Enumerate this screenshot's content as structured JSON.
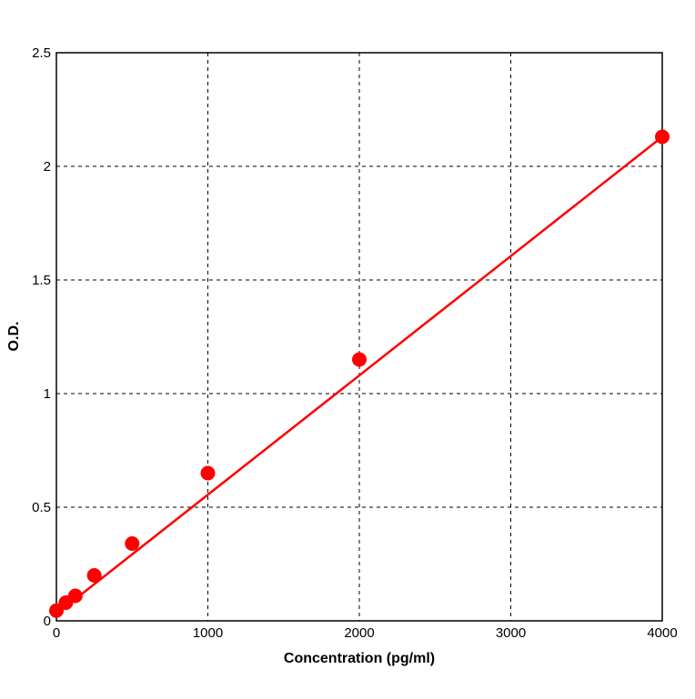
{
  "chart_data": {
    "type": "scatter",
    "title": "",
    "xlabel": "Concentration (pg/ml)",
    "ylabel": "O.D.",
    "xlim": [
      0,
      4000
    ],
    "ylim": [
      0,
      2.5
    ],
    "xticks": [
      "0",
      "1000",
      "2000",
      "3000",
      "4000"
    ],
    "yticks": [
      "0",
      "0.5",
      "1",
      "1.5",
      "2",
      "2.5"
    ],
    "grid": true,
    "series": [
      {
        "x": [
          0,
          62.5,
          125,
          250,
          500,
          1000,
          2000,
          4000
        ],
        "y": [
          0.045,
          0.08,
          0.11,
          0.2,
          0.34,
          0.65,
          1.15,
          2.13
        ],
        "color": "#ff0000"
      }
    ],
    "fit_line": {
      "x": [
        0,
        4000
      ],
      "y": [
        0.03,
        2.13
      ],
      "color": "#ff0000"
    }
  }
}
